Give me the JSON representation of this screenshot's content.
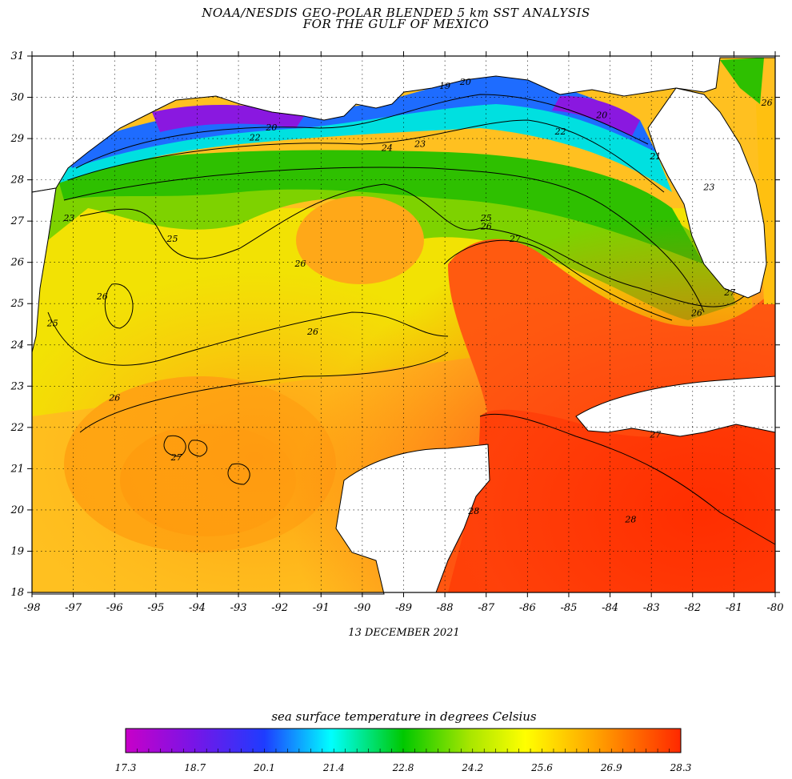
{
  "title_line1": "NOAA/NESDIS GEO-POLAR BLENDED 5 km SST ANALYSIS",
  "title_line2": "FOR THE GULF OF MEXICO",
  "date": "13 DECEMBER 2021",
  "legend_title": "sea surface temperature in degrees Celsius",
  "lon_ticks": [
    -98,
    -97,
    -96,
    -95,
    -94,
    -93,
    -92,
    -91,
    -90,
    -89,
    -88,
    -87,
    -86,
    -85,
    -84,
    -83,
    -82,
    -81,
    -80
  ],
  "lat_ticks": [
    18,
    19,
    20,
    21,
    22,
    23,
    24,
    25,
    26,
    27,
    28,
    29,
    30,
    31
  ],
  "lon_range": [
    -98,
    -80
  ],
  "lat_range": [
    18,
    31
  ],
  "colorbar_labels": [
    "17.3",
    "18.7",
    "20.1",
    "21.4",
    "22.8",
    "24.2",
    "25.6",
    "26.9",
    "28.3"
  ],
  "colorbar_range": [
    17.3,
    28.3
  ],
  "contour_labels": [
    {
      "text": "19",
      "lon": -88.0,
      "lat": 30.2
    },
    {
      "text": "20",
      "lon": -87.5,
      "lat": 30.3
    },
    {
      "text": "20",
      "lon": -92.2,
      "lat": 29.2
    },
    {
      "text": "20",
      "lon": -84.2,
      "lat": 29.5
    },
    {
      "text": "22",
      "lon": -92.6,
      "lat": 28.95
    },
    {
      "text": "22",
      "lon": -85.2,
      "lat": 29.1
    },
    {
      "text": "24",
      "lon": -89.4,
      "lat": 28.7
    },
    {
      "text": "23",
      "lon": -88.6,
      "lat": 28.8
    },
    {
      "text": "21",
      "lon": -82.9,
      "lat": 28.5
    },
    {
      "text": "23",
      "lon": -81.6,
      "lat": 27.75
    },
    {
      "text": "26",
      "lon": -80.2,
      "lat": 29.8
    },
    {
      "text": "25",
      "lon": -87.0,
      "lat": 27.0
    },
    {
      "text": "26",
      "lon": -87.0,
      "lat": 26.8
    },
    {
      "text": "27",
      "lon": -86.3,
      "lat": 26.5
    },
    {
      "text": "23",
      "lon": -97.1,
      "lat": 27.0
    },
    {
      "text": "25",
      "lon": -94.6,
      "lat": 26.5
    },
    {
      "text": "26",
      "lon": -91.5,
      "lat": 25.9
    },
    {
      "text": "26",
      "lon": -96.3,
      "lat": 25.1
    },
    {
      "text": "25",
      "lon": -97.5,
      "lat": 24.45
    },
    {
      "text": "26",
      "lon": -91.2,
      "lat": 24.25
    },
    {
      "text": "26",
      "lon": -96.0,
      "lat": 22.65
    },
    {
      "text": "27",
      "lon": -94.5,
      "lat": 21.2
    },
    {
      "text": "26",
      "lon": -81.9,
      "lat": 24.7
    },
    {
      "text": "27",
      "lon": -81.1,
      "lat": 25.2
    },
    {
      "text": "27",
      "lon": -82.9,
      "lat": 21.75
    },
    {
      "text": "28",
      "lon": -87.3,
      "lat": 19.9
    },
    {
      "text": "28",
      "lon": -83.5,
      "lat": 19.7
    }
  ],
  "colors": {
    "frame": "#000000",
    "land": "#ffffff",
    "contour": "#000000"
  }
}
